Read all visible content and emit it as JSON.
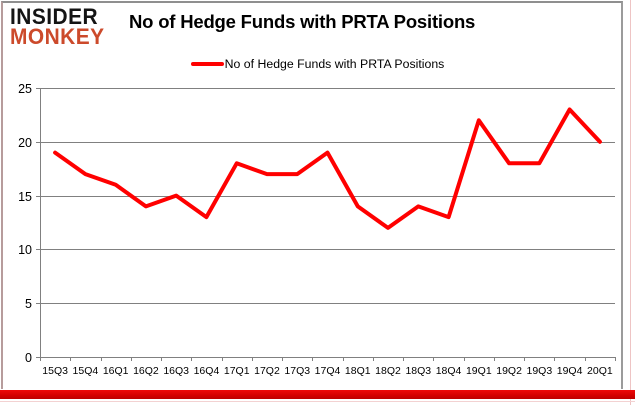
{
  "brand": {
    "line1": "INSIDER",
    "line2": "MONKEY",
    "accent_color": "#cc4a2b"
  },
  "title": "No of Hedge Funds with PRTA Positions",
  "legend": {
    "label": "No of Hedge Funds with PRTA Positions",
    "color": "#ff0000"
  },
  "chart_data": {
    "type": "line",
    "title": "No of Hedge Funds with PRTA Positions",
    "categories": [
      "15Q3",
      "15Q4",
      "16Q1",
      "16Q2",
      "16Q3",
      "16Q4",
      "17Q1",
      "17Q2",
      "17Q3",
      "17Q4",
      "18Q1",
      "18Q2",
      "18Q3",
      "18Q4",
      "19Q1",
      "19Q2",
      "19Q3",
      "19Q4",
      "20Q1"
    ],
    "series": [
      {
        "name": "No of Hedge Funds with PRTA Positions",
        "values": [
          19,
          17,
          16,
          14,
          15,
          13,
          18,
          17,
          17,
          19,
          14,
          12,
          14,
          13,
          22,
          18,
          18,
          23,
          20
        ],
        "color": "#ff0000"
      }
    ],
    "xlabel": "",
    "ylabel": "",
    "ylim": [
      0,
      25
    ],
    "yticks": [
      0,
      5,
      10,
      15,
      20,
      25
    ],
    "grid": true,
    "legend_position": "top-center"
  },
  "frame": {
    "grid_color": "#808080",
    "axis_text_color": "#000000",
    "accent_bar_color": "#ee0a0a",
    "border_pink": "#eec4c4"
  }
}
